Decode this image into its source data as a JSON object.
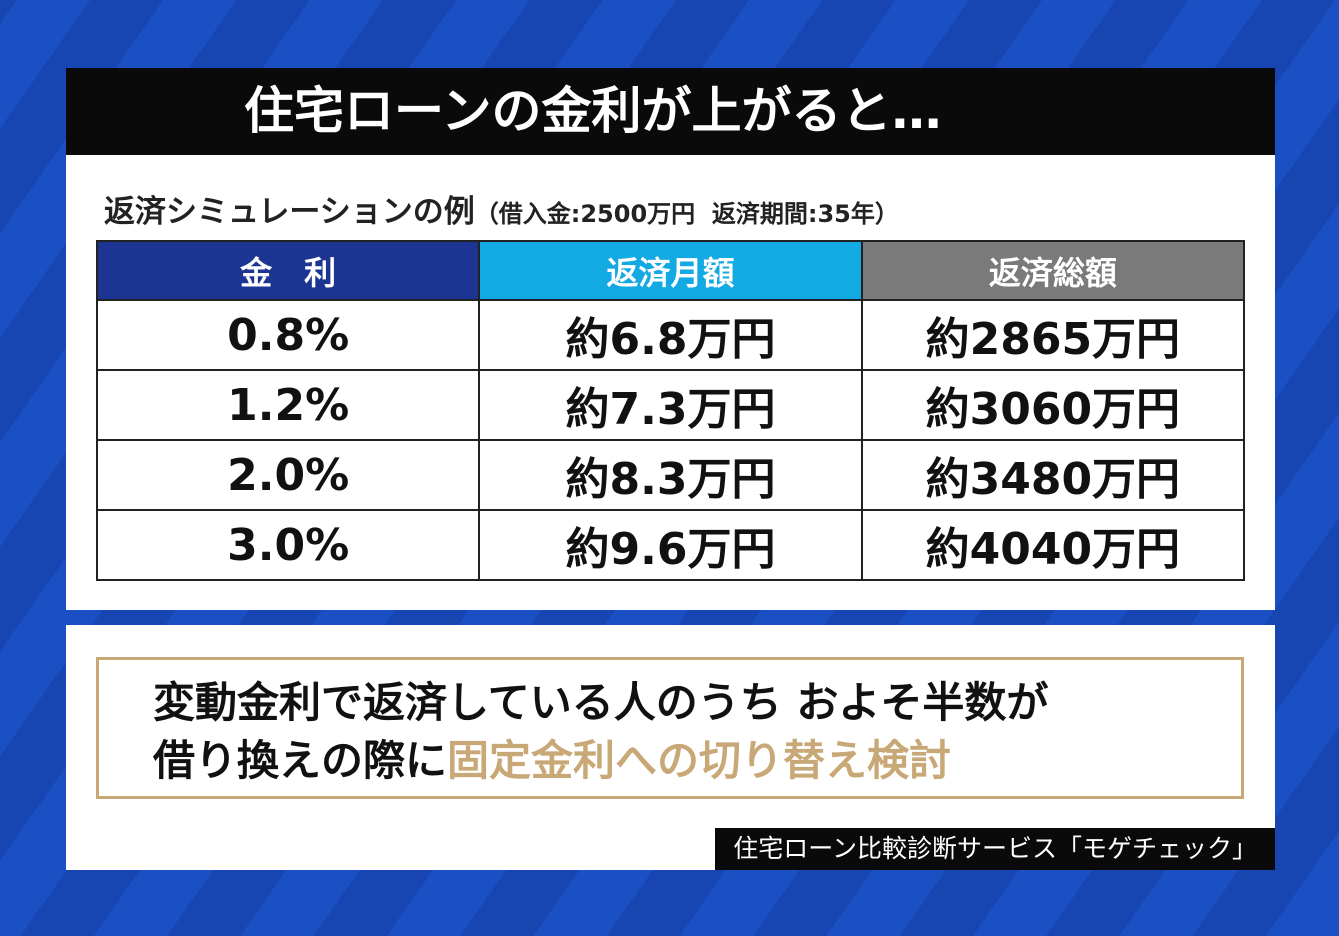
{
  "header": {
    "title": "住宅ローンの金利が上がると…"
  },
  "subtitle": {
    "main": "返済シミュレーションの例",
    "note": "（借入金:2500万円  返済期間:35年）"
  },
  "table": {
    "headers": [
      "金　利",
      "返済月額",
      "返済総額"
    ],
    "rows": [
      [
        "0.8%",
        "約6.8万円",
        "約2865万円"
      ],
      [
        "1.2%",
        "約7.3万円",
        "約3060万円"
      ],
      [
        "2.0%",
        "約8.3万円",
        "約3480万円"
      ],
      [
        "3.0%",
        "約9.6万円",
        "約4040万円"
      ]
    ]
  },
  "note": {
    "line1": "変動金利で返済している人のうち およそ半数が",
    "line2": "借り換えの際に",
    "highlight": "固定金利への切り替え検討"
  },
  "source": "住宅ローン比較診断サービス「モゲチェック」"
}
